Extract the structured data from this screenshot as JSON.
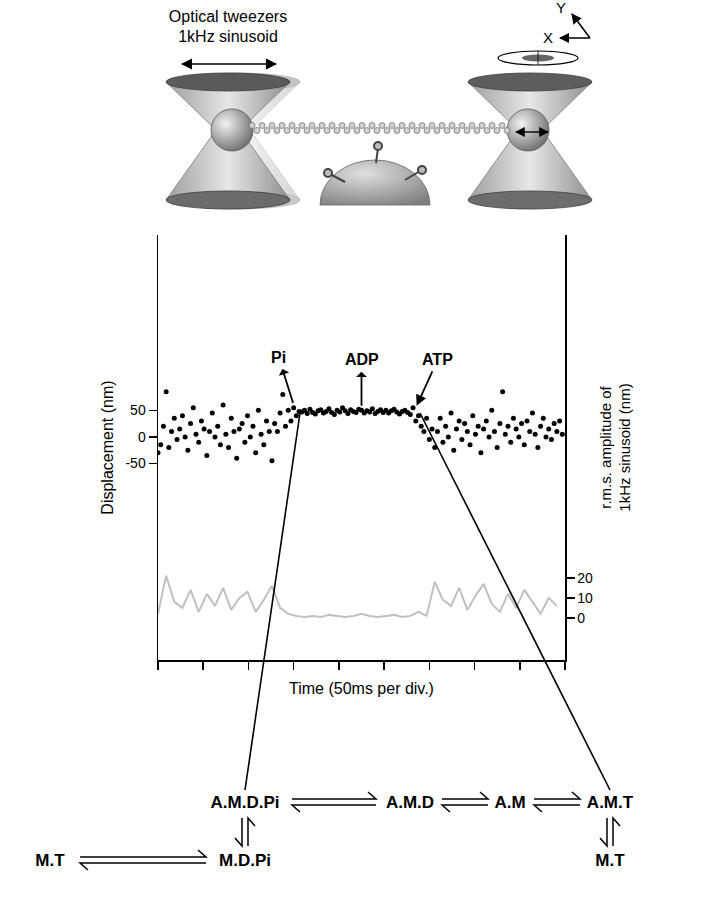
{
  "diagram": {
    "trap_label": [
      "Optical tweezers",
      "1kHz sinusoid"
    ],
    "axes_labels": [
      "Y",
      "X"
    ]
  },
  "chart_data": {
    "type": "scatter",
    "xlabel": "Time (50ms per div.)",
    "ylabel": "Displacement (nm)",
    "y2label": "r.m.s. amplitude of 1kHz sinusoid (nm)",
    "xlim": [
      0,
      450
    ],
    "xticks": [
      0,
      50,
      100,
      150,
      200,
      250,
      300,
      350,
      400,
      450
    ],
    "ylim": [
      -420,
      380
    ],
    "yticks": [
      -50,
      0,
      50
    ],
    "y2lim": [
      -21,
      191
    ],
    "y2ticks": [
      0,
      10,
      20
    ],
    "tick_labels": "y",
    "grid": false,
    "series": [
      {
        "type": "scatter",
        "marker": "circle",
        "color": "#000000",
        "x": [
          0,
          3,
          6,
          9,
          12,
          15,
          18,
          21,
          24,
          27,
          30,
          33,
          36,
          39,
          42,
          45,
          48,
          51,
          54,
          57,
          60,
          63,
          66,
          69,
          72,
          75,
          78,
          81,
          84,
          87,
          90,
          93,
          96,
          99,
          102,
          105,
          108,
          111,
          114,
          117,
          120,
          123,
          126,
          129,
          132,
          135,
          138,
          141,
          144,
          147,
          150,
          153,
          156,
          159,
          162,
          165,
          168,
          171,
          174,
          177,
          180,
          183,
          186,
          189,
          192,
          195,
          198,
          201,
          204,
          207,
          210,
          213,
          216,
          219,
          222,
          225,
          228,
          231,
          234,
          237,
          240,
          243,
          246,
          249,
          252,
          255,
          258,
          261,
          264,
          267,
          270,
          273,
          276,
          279,
          282,
          285,
          288,
          291,
          294,
          297,
          300,
          303,
          306,
          309,
          312,
          315,
          318,
          321,
          324,
          327,
          330,
          333,
          336,
          339,
          342,
          345,
          348,
          351,
          354,
          357,
          360,
          363,
          366,
          369,
          372,
          375,
          378,
          381,
          384,
          387,
          390,
          393,
          396,
          399,
          402,
          405,
          408,
          411,
          414,
          417,
          420,
          423,
          426,
          429,
          432,
          435,
          438,
          441,
          444,
          447
        ],
        "values": [
          -30,
          -15,
          20,
          85,
          -20,
          10,
          35,
          -5,
          15,
          40,
          0,
          -25,
          25,
          55,
          5,
          -10,
          30,
          15,
          -35,
          10,
          45,
          0,
          20,
          -15,
          60,
          5,
          -20,
          35,
          10,
          -40,
          15,
          25,
          -10,
          40,
          0,
          20,
          -30,
          50,
          5,
          -15,
          30,
          10,
          -45,
          25,
          10,
          45,
          80,
          20,
          50,
          30,
          55,
          40,
          48,
          47,
          50,
          44,
          52,
          46,
          43,
          49,
          51,
          45,
          48,
          53,
          46,
          42,
          50,
          47,
          55,
          49,
          44,
          51,
          48,
          46,
          52,
          50,
          45,
          49,
          47,
          53,
          44,
          48,
          51,
          46,
          50,
          45,
          49,
          52,
          47,
          43,
          48,
          50,
          46,
          42,
          55,
          30,
          40,
          20,
          10,
          35,
          -5,
          15,
          -20,
          10,
          35,
          -10,
          20,
          0,
          45,
          -25,
          15,
          30,
          -5,
          25,
          10,
          -15,
          40,
          5,
          20,
          -30,
          15,
          30,
          0,
          50,
          10,
          -20,
          25,
          85,
          5,
          20,
          -10,
          35,
          15,
          0,
          25,
          -15,
          30,
          10,
          45,
          5,
          -20,
          20,
          35,
          0,
          15,
          -5,
          25,
          10,
          30,
          5
        ]
      },
      {
        "type": "line",
        "axis": "y2",
        "color": "#c0c0c0",
        "x": [
          0,
          9,
          18,
          27,
          36,
          45,
          54,
          63,
          72,
          81,
          90,
          99,
          108,
          117,
          126,
          135,
          144,
          153,
          162,
          171,
          180,
          189,
          198,
          207,
          216,
          225,
          234,
          243,
          252,
          261,
          270,
          279,
          288,
          297,
          306,
          315,
          324,
          333,
          342,
          351,
          360,
          369,
          378,
          387,
          396,
          405,
          414,
          423,
          432,
          441
        ],
        "values": [
          2,
          21,
          8,
          5,
          14,
          3,
          12,
          6,
          15,
          4,
          10,
          13,
          3,
          9,
          16,
          5,
          2,
          1,
          0.5,
          1,
          0.5,
          1.5,
          1,
          0.5,
          1,
          2,
          1,
          0.5,
          1,
          1.5,
          0.5,
          1,
          3,
          1,
          18,
          9,
          6,
          15,
          4,
          11,
          17,
          7,
          3,
          12,
          5,
          14,
          8,
          2,
          10,
          6
        ]
      }
    ],
    "annotations": [
      {
        "text": "Pi",
        "x": 150,
        "y": 60,
        "arrow": "out"
      },
      {
        "text": "ADP",
        "x": 225,
        "y": 55,
        "arrow": "out"
      },
      {
        "text": "ATP",
        "x": 285,
        "y": 55,
        "arrow": "in"
      }
    ]
  },
  "scheme": {
    "row1": [
      "A.M.D.Pi",
      "A.M.D",
      "A.M",
      "A.M.T"
    ],
    "row2": [
      "M.T",
      "M.D.Pi",
      "M.T"
    ]
  }
}
